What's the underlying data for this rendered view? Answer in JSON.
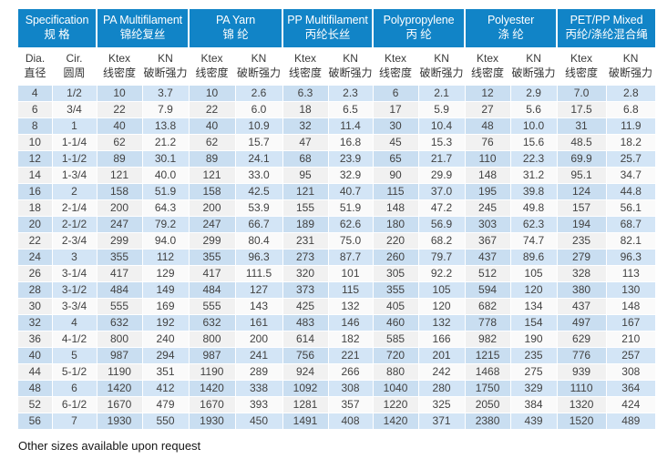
{
  "page": {
    "footer_note": "Other sizes available upon request"
  },
  "colors": {
    "header_bg": "#1184c7",
    "header_text": "#ffffff",
    "row_blue": "#cde1f3",
    "row_light": "#f6f6f6",
    "body_text": "#424242"
  },
  "table": {
    "groups": [
      {
        "en": "Specification",
        "zh": "规 格"
      },
      {
        "en": "PA Multifilament",
        "zh": "锦纶复丝"
      },
      {
        "en": "PA Yarn",
        "zh": "锦 纶"
      },
      {
        "en": "PP Multifilament",
        "zh": "丙纶长丝"
      },
      {
        "en": "Polypropylene",
        "zh": "丙 纶"
      },
      {
        "en": "Polyester",
        "zh": "涤 纶"
      },
      {
        "en": "PET/PP Mixed",
        "zh": "丙纶/涤纶混合绳"
      }
    ],
    "sub_columns": [
      {
        "en": "Dia.",
        "zh": "直径"
      },
      {
        "en": "Cir.",
        "zh": "圆周"
      },
      {
        "en": "Ktex",
        "zh": "线密度"
      },
      {
        "en": "KN",
        "zh": "破断强力"
      },
      {
        "en": "Ktex",
        "zh": "线密度"
      },
      {
        "en": "KN",
        "zh": "破断强力"
      },
      {
        "en": "Ktex",
        "zh": "线密度"
      },
      {
        "en": "KN",
        "zh": "破断强力"
      },
      {
        "en": "Ktex",
        "zh": "线密度"
      },
      {
        "en": "KN",
        "zh": "破断强力"
      },
      {
        "en": "Ktex",
        "zh": "线密度"
      },
      {
        "en": "KN",
        "zh": "破断强力"
      },
      {
        "en": "Ktex",
        "zh": "线密度"
      },
      {
        "en": "KN",
        "zh": "破断强力"
      }
    ],
    "rows": [
      [
        "4",
        "1/2",
        "10",
        "3.7",
        "10",
        "2.6",
        "6.3",
        "2.3",
        "6",
        "2.1",
        "12",
        "2.9",
        "7.0",
        "2.8"
      ],
      [
        "6",
        "3/4",
        "22",
        "7.9",
        "22",
        "6.0",
        "18",
        "6.5",
        "17",
        "5.9",
        "27",
        "5.6",
        "17.5",
        "6.8"
      ],
      [
        "8",
        "1",
        "40",
        "13.8",
        "40",
        "10.9",
        "32",
        "11.4",
        "30",
        "10.4",
        "48",
        "10.0",
        "31",
        "11.9"
      ],
      [
        "10",
        "1-1/4",
        "62",
        "21.2",
        "62",
        "15.7",
        "47",
        "16.8",
        "45",
        "15.3",
        "76",
        "15.6",
        "48.5",
        "18.2"
      ],
      [
        "12",
        "1-1/2",
        "89",
        "30.1",
        "89",
        "24.1",
        "68",
        "23.9",
        "65",
        "21.7",
        "110",
        "22.3",
        "69.9",
        "25.7"
      ],
      [
        "14",
        "1-3/4",
        "121",
        "40.0",
        "121",
        "33.0",
        "95",
        "32.9",
        "90",
        "29.9",
        "148",
        "31.2",
        "95.1",
        "34.7"
      ],
      [
        "16",
        "2",
        "158",
        "51.9",
        "158",
        "42.5",
        "121",
        "40.7",
        "115",
        "37.0",
        "195",
        "39.8",
        "124",
        "44.8"
      ],
      [
        "18",
        "2-1/4",
        "200",
        "64.3",
        "200",
        "53.9",
        "155",
        "51.9",
        "148",
        "47.2",
        "245",
        "49.8",
        "157",
        "56.1"
      ],
      [
        "20",
        "2-1/2",
        "247",
        "79.2",
        "247",
        "66.7",
        "189",
        "62.6",
        "180",
        "56.9",
        "303",
        "62.3",
        "194",
        "68.7"
      ],
      [
        "22",
        "2-3/4",
        "299",
        "94.0",
        "299",
        "80.4",
        "231",
        "75.0",
        "220",
        "68.2",
        "367",
        "74.7",
        "235",
        "82.1"
      ],
      [
        "24",
        "3",
        "355",
        "112",
        "355",
        "96.3",
        "273",
        "87.7",
        "260",
        "79.7",
        "437",
        "89.6",
        "279",
        "96.3"
      ],
      [
        "26",
        "3-1/4",
        "417",
        "129",
        "417",
        "111.5",
        "320",
        "101",
        "305",
        "92.2",
        "512",
        "105",
        "328",
        "113"
      ],
      [
        "28",
        "3-1/2",
        "484",
        "149",
        "484",
        "127",
        "373",
        "115",
        "355",
        "105",
        "594",
        "120",
        "380",
        "130"
      ],
      [
        "30",
        "3-3/4",
        "555",
        "169",
        "555",
        "143",
        "425",
        "132",
        "405",
        "120",
        "682",
        "134",
        "437",
        "148"
      ],
      [
        "32",
        "4",
        "632",
        "192",
        "632",
        "161",
        "483",
        "146",
        "460",
        "132",
        "778",
        "154",
        "497",
        "167"
      ],
      [
        "36",
        "4-1/2",
        "800",
        "240",
        "800",
        "200",
        "614",
        "182",
        "585",
        "166",
        "982",
        "190",
        "629",
        "210"
      ],
      [
        "40",
        "5",
        "987",
        "294",
        "987",
        "241",
        "756",
        "221",
        "720",
        "201",
        "1215",
        "235",
        "776",
        "257"
      ],
      [
        "44",
        "5-1/2",
        "1190",
        "351",
        "1190",
        "289",
        "924",
        "266",
        "880",
        "242",
        "1468",
        "275",
        "939",
        "308"
      ],
      [
        "48",
        "6",
        "1420",
        "412",
        "1420",
        "338",
        "1092",
        "308",
        "1040",
        "280",
        "1750",
        "329",
        "1110",
        "364"
      ],
      [
        "52",
        "6-1/2",
        "1670",
        "479",
        "1670",
        "393",
        "1281",
        "357",
        "1220",
        "325",
        "2050",
        "384",
        "1320",
        "424"
      ],
      [
        "56",
        "7",
        "1930",
        "550",
        "1930",
        "450",
        "1491",
        "408",
        "1420",
        "371",
        "2380",
        "439",
        "1520",
        "489"
      ]
    ]
  }
}
